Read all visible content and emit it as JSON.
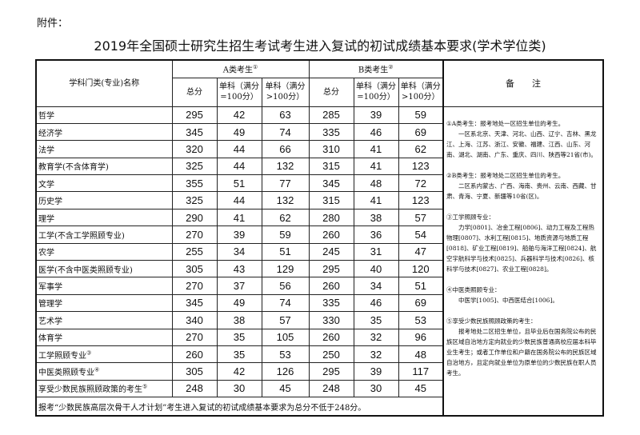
{
  "attachment_label": "附件：",
  "title": "2019年全国硕士研究生招生考试考生进入复试的初试成绩基本要求(学术学位类)",
  "header": {
    "subject": "学科门类(专业)名称",
    "group_a": "A类考生",
    "group_a_mark": "①",
    "group_b": "B类考生",
    "group_b_mark": "②",
    "total": "总分",
    "single_100": "单科（满分=100分）",
    "single_gt100": "单科（满分>100分）",
    "notes": "备　　注"
  },
  "rows": [
    {
      "name": "哲学",
      "mark": "",
      "a": [
        "295",
        "42",
        "63"
      ],
      "b": [
        "285",
        "39",
        "59"
      ]
    },
    {
      "name": "经济学",
      "mark": "",
      "a": [
        "345",
        "49",
        "74"
      ],
      "b": [
        "335",
        "46",
        "69"
      ]
    },
    {
      "name": "法学",
      "mark": "",
      "a": [
        "320",
        "44",
        "66"
      ],
      "b": [
        "310",
        "41",
        "62"
      ]
    },
    {
      "name": "教育学(不含体育学)",
      "mark": "",
      "a": [
        "325",
        "44",
        "132"
      ],
      "b": [
        "315",
        "41",
        "123"
      ]
    },
    {
      "name": "文学",
      "mark": "",
      "a": [
        "355",
        "51",
        "77"
      ],
      "b": [
        "345",
        "48",
        "72"
      ]
    },
    {
      "name": "历史学",
      "mark": "",
      "a": [
        "325",
        "44",
        "132"
      ],
      "b": [
        "315",
        "41",
        "123"
      ]
    },
    {
      "name": "理学",
      "mark": "",
      "a": [
        "290",
        "41",
        "62"
      ],
      "b": [
        "280",
        "38",
        "57"
      ]
    },
    {
      "name": "工学(不含工学照顾专业)",
      "mark": "",
      "a": [
        "270",
        "39",
        "59"
      ],
      "b": [
        "260",
        "36",
        "54"
      ]
    },
    {
      "name": "农学",
      "mark": "",
      "a": [
        "255",
        "34",
        "51"
      ],
      "b": [
        "245",
        "31",
        "47"
      ]
    },
    {
      "name": "医学(不含中医类照顾专业)",
      "mark": "",
      "a": [
        "305",
        "43",
        "129"
      ],
      "b": [
        "295",
        "40",
        "120"
      ]
    },
    {
      "name": "军事学",
      "mark": "",
      "a": [
        "270",
        "37",
        "56"
      ],
      "b": [
        "260",
        "34",
        "51"
      ]
    },
    {
      "name": "管理学",
      "mark": "",
      "a": [
        "345",
        "49",
        "74"
      ],
      "b": [
        "335",
        "46",
        "69"
      ]
    },
    {
      "name": "艺术学",
      "mark": "",
      "a": [
        "340",
        "38",
        "57"
      ],
      "b": [
        "330",
        "35",
        "53"
      ]
    },
    {
      "name": "体育学",
      "mark": "",
      "a": [
        "270",
        "35",
        "105"
      ],
      "b": [
        "260",
        "32",
        "96"
      ]
    },
    {
      "name": "工学照顾专业",
      "mark": "③",
      "a": [
        "260",
        "35",
        "53"
      ],
      "b": [
        "250",
        "32",
        "48"
      ]
    },
    {
      "name": "中医类照顾专业",
      "mark": "④",
      "a": [
        "305",
        "42",
        "126"
      ],
      "b": [
        "295",
        "39",
        "117"
      ]
    },
    {
      "name": "享受少数民族照顾政策的考生",
      "mark": "⑤",
      "a": [
        "248",
        "30",
        "45"
      ],
      "b": [
        "248",
        "30",
        "45"
      ]
    }
  ],
  "footer": "报考“少数民族高层次骨干人才计划”考生进入复试的初试成绩基本要求为总分不低于248分。",
  "notes": [
    {
      "head": "①A类考生：报考地处一区招生单位的考生。",
      "body": "一区系北京、天津、河北、山西、辽宁、吉林、黑龙江、上海、江苏、浙江、安徽、福建、江西、山东、河南、湖北、湖南、广东、重庆、四川、陕西等21省(市)。"
    },
    {
      "head": "②B类考生：报考地处二区招生单位的考生。",
      "body": "二区系内蒙古、广西、海南、贵州、云南、西藏、甘肃、青海、宁夏、新疆等10省(区)。"
    },
    {
      "head": "③工学照顾专业：",
      "body": "力学[0801]、冶金工程[0806]、动力工程及工程热物理[0807]、水利工程[0815]、地质资源与地质工程[0818]、矿业工程[0819]、船舶与海洋工程[0824]、航空宇航科学与技术[0825]、兵器科学与技术[0826]、核科学与技术[0827]、农业工程[0828]。"
    },
    {
      "head": "④中医类照顾专业：",
      "body": "中医学[1005]、中西医结合[1006]。"
    },
    {
      "head": "⑤享受少数民族照顾政策的考生：",
      "body": "报考地处二区招生单位，且毕业后在国务院公布的民族区域自治地方定向就业的少数民族普通高校应届本科毕业生考生；或者工作单位和户籍在国务院公布的民族区域自治地方，且定向就业单位为原单位的少数民族在职人员考生。"
    }
  ]
}
